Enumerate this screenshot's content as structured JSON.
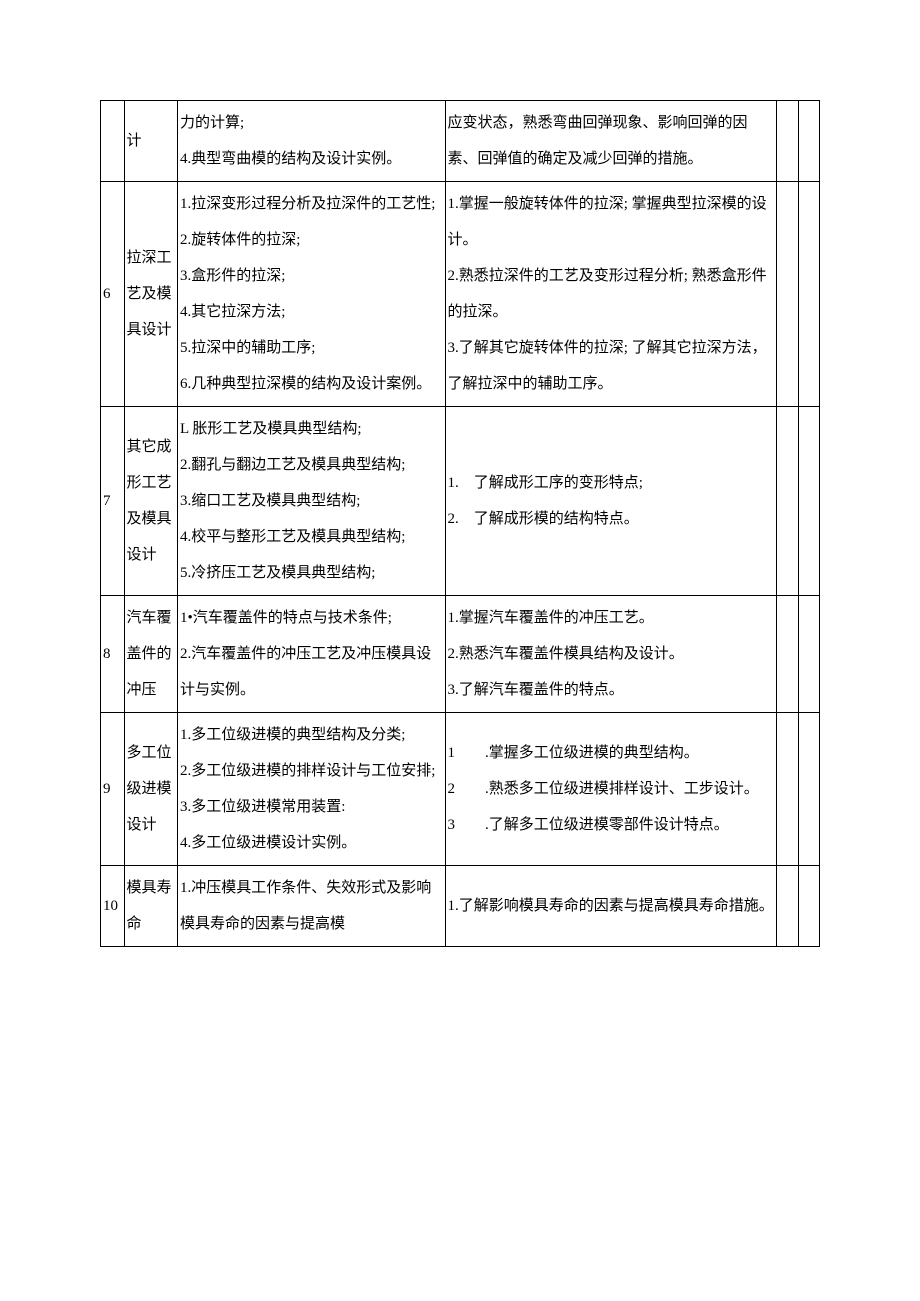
{
  "rows": [
    {
      "idx": "",
      "title": "计",
      "content": "力的计算;\n4.典型弯曲模的结构及设计实例。",
      "req": "应变状态，熟悉弯曲回弹现象、影响回弹的因素、回弹值的确定及减少回弹的措施。"
    },
    {
      "idx": "6",
      "title": "拉深工艺及模具设计",
      "content": "1.拉深变形过程分析及拉深件的工艺性;\n2.旋转体件的拉深;\n3.盒形件的拉深;\n4.其它拉深方法;\n5.拉深中的辅助工序;\n6.几种典型拉深模的结构及设计案例。",
      "req": "1.掌握一般旋转体件的拉深; 掌握典型拉深模的设计。\n2.熟悉拉深件的工艺及变形过程分析; 熟悉盒形件的拉深。\n3.了解其它旋转体件的拉深; 了解其它拉深方法，了解拉深中的辅助工序。"
    },
    {
      "idx": "7",
      "title": "其它成形工艺及模具设计",
      "content": "L 胀形工艺及模具典型结构;\n2.翻孔与翻边工艺及模具典型结构;\n3.缩口工艺及模具典型结构;\n4.校平与整形工艺及模具典型结构;\n5.冷挤压工艺及模具典型结构;",
      "req": "1.　了解成形工序的变形特点;\n2.　了解成形模的结构特点。"
    },
    {
      "idx": "8",
      "title": "汽车覆盖件的冲压",
      "content": "1•汽车覆盖件的特点与技术条件;\n2.汽车覆盖件的冲压工艺及冲压模具设计与实例。",
      "req": "1.掌握汽车覆盖件的冲压工艺。\n2.熟悉汽车覆盖件模具结构及设计。\n3.了解汽车覆盖件的特点。"
    },
    {
      "idx": "9",
      "title": "多工位级进模设计",
      "content": "1.多工位级进模的典型结构及分类;\n2.多工位级进模的排样设计与工位安排;\n3.多工位级进模常用装置:\n4.多工位级进模设计实例。",
      "req": "1　　.掌握多工位级进模的典型结构。\n2　　.熟悉多工位级进模排样设计、工步设计。\n3　　.了解多工位级进模零部件设计特点。"
    },
    {
      "idx": "10",
      "title": "模具寿命",
      "content": "1.冲压模具工作条件、失效形式及影响模具寿命的因素与提高模",
      "req": "1.了解影响模具寿命的因素与提高模具寿命措施。"
    }
  ]
}
